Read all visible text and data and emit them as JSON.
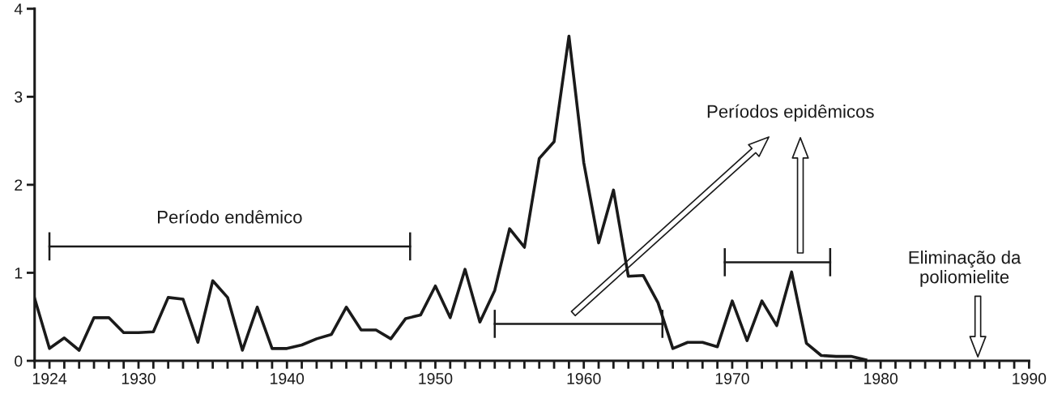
{
  "chart_data": {
    "type": "line",
    "x": [
      1923,
      1924,
      1925,
      1926,
      1927,
      1928,
      1929,
      1930,
      1931,
      1932,
      1933,
      1934,
      1935,
      1936,
      1937,
      1938,
      1939,
      1940,
      1941,
      1942,
      1943,
      1944,
      1945,
      1946,
      1947,
      1948,
      1949,
      1950,
      1951,
      1952,
      1953,
      1954,
      1955,
      1956,
      1957,
      1958,
      1959,
      1960,
      1961,
      1962,
      1963,
      1964,
      1965,
      1966,
      1967,
      1968,
      1969,
      1970,
      1971,
      1972,
      1973,
      1974,
      1975,
      1976,
      1977,
      1978,
      1979
    ],
    "series": [
      {
        "color": "#1a1a1a",
        "values": [
          0.71,
          0.14,
          0.26,
          0.12,
          0.49,
          0.49,
          0.32,
          0.32,
          0.33,
          0.72,
          0.7,
          0.21,
          0.91,
          0.72,
          0.12,
          0.61,
          0.14,
          0.14,
          0.18,
          0.25,
          0.3,
          0.61,
          0.35,
          0.35,
          0.25,
          0.48,
          0.52,
          0.85,
          0.49,
          1.04,
          0.44,
          0.8,
          1.5,
          1.29,
          2.3,
          2.49,
          3.69,
          2.25,
          1.34,
          1.94,
          0.96,
          0.97,
          0.66,
          0.14,
          0.21,
          0.21,
          0.16,
          0.68,
          0.23,
          0.68,
          0.4,
          1.01,
          0.2,
          0.06,
          0.05,
          0.05,
          0.01
        ]
      }
    ],
    "xlim": [
      1923,
      1990
    ],
    "xticks": [
      {
        "value": 1923,
        "label": null
      },
      1924,
      {
        "value": 1925,
        "label": null
      },
      {
        "value": 1926,
        "label": null
      },
      {
        "value": 1927,
        "label": null
      },
      {
        "value": 1928,
        "label": null
      },
      {
        "value": 1929,
        "label": null
      },
      1930,
      {
        "value": 1931,
        "label": null
      },
      {
        "value": 1932,
        "label": null
      },
      {
        "value": 1933,
        "label": null
      },
      {
        "value": 1934,
        "label": null
      },
      {
        "value": 1935,
        "label": null
      },
      {
        "value": 1936,
        "label": null
      },
      {
        "value": 1937,
        "label": null
      },
      {
        "value": 1938,
        "label": null
      },
      {
        "value": 1939,
        "label": null
      },
      1940,
      {
        "value": 1941,
        "label": null
      },
      {
        "value": 1942,
        "label": null
      },
      {
        "value": 1943,
        "label": null
      },
      {
        "value": 1944,
        "label": null
      },
      {
        "value": 1945,
        "label": null
      },
      {
        "value": 1946,
        "label": null
      },
      {
        "value": 1947,
        "label": null
      },
      {
        "value": 1948,
        "label": null
      },
      {
        "value": 1949,
        "label": null
      },
      1950,
      {
        "value": 1951,
        "label": null
      },
      {
        "value": 1952,
        "label": null
      },
      {
        "value": 1953,
        "label": null
      },
      {
        "value": 1954,
        "label": null
      },
      {
        "value": 1955,
        "label": null
      },
      {
        "value": 1956,
        "label": null
      },
      {
        "value": 1957,
        "label": null
      },
      {
        "value": 1958,
        "label": null
      },
      {
        "value": 1959,
        "label": null
      },
      1960,
      {
        "value": 1961,
        "label": null
      },
      {
        "value": 1962,
        "label": null
      },
      {
        "value": 1963,
        "label": null
      },
      {
        "value": 1964,
        "label": null
      },
      {
        "value": 1965,
        "label": null
      },
      {
        "value": 1966,
        "label": null
      },
      {
        "value": 1967,
        "label": null
      },
      {
        "value": 1968,
        "label": null
      },
      {
        "value": 1969,
        "label": null
      },
      1970,
      {
        "value": 1971,
        "label": null
      },
      {
        "value": 1972,
        "label": null
      },
      {
        "value": 1973,
        "label": null
      },
      {
        "value": 1974,
        "label": null
      },
      {
        "value": 1975,
        "label": null
      },
      {
        "value": 1976,
        "label": null
      },
      {
        "value": 1977,
        "label": null
      },
      {
        "value": 1978,
        "label": null
      },
      {
        "value": 1979,
        "label": null
      },
      1980,
      {
        "value": 1981,
        "label": null
      },
      {
        "value": 1982,
        "label": null
      },
      {
        "value": 1983,
        "label": null
      },
      {
        "value": 1984,
        "label": null
      },
      {
        "value": 1985,
        "label": null
      },
      {
        "value": 1986,
        "label": null
      },
      {
        "value": 1987,
        "label": null
      },
      {
        "value": 1988,
        "label": null
      },
      {
        "value": 1989,
        "label": null
      },
      1990
    ],
    "ylim": [
      0,
      4
    ],
    "yticks": [
      0,
      1,
      2,
      3,
      4
    ],
    "grid": false,
    "marker": "none",
    "line_style": "solid",
    "annotations": [
      "Período endêmico",
      "Períodos epidêmicos",
      "Eliminação da\npoliomielite"
    ]
  }
}
